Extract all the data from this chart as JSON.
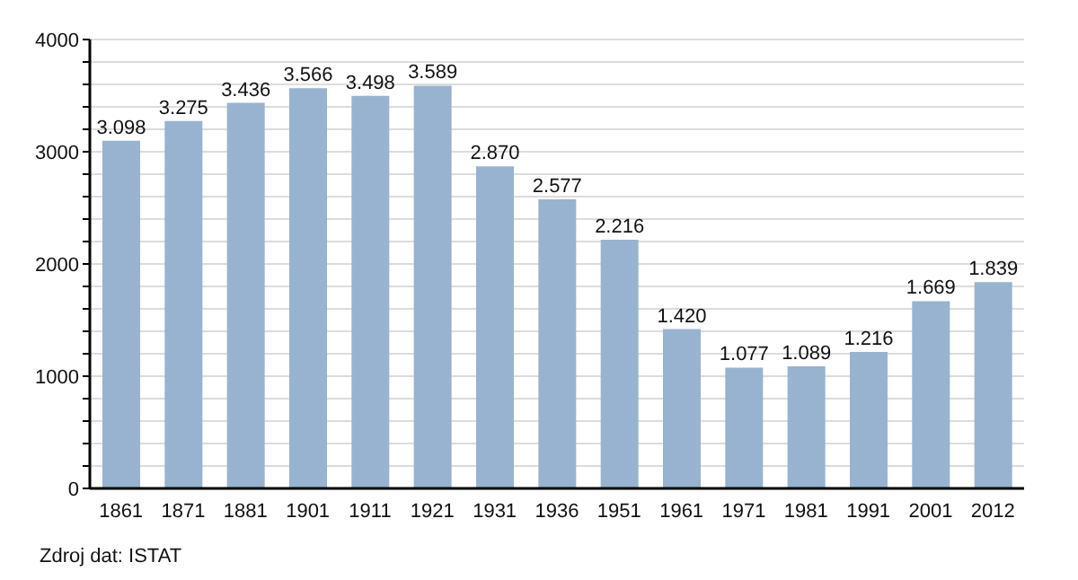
{
  "chart_data": {
    "type": "bar",
    "categories": [
      "1861",
      "1871",
      "1881",
      "1901",
      "1911",
      "1921",
      "1931",
      "1936",
      "1951",
      "1961",
      "1971",
      "1981",
      "1991",
      "2001",
      "2012"
    ],
    "values": [
      3098,
      3275,
      3436,
      3566,
      3498,
      3589,
      2870,
      2577,
      2216,
      1420,
      1077,
      1089,
      1216,
      1669,
      1839
    ],
    "value_labels": [
      "3.098",
      "3.275",
      "3.436",
      "3.566",
      "3.498",
      "3.589",
      "2.870",
      "2.577",
      "2.216",
      "1.420",
      "1.077",
      "1.089",
      "1.216",
      "1.669",
      "1.839"
    ],
    "color": "#98b3cf",
    "ylim": [
      0,
      4000
    ],
    "yticks": [
      0,
      {
        "value": 200,
        "label": null
      },
      {
        "value": 400,
        "label": null
      },
      {
        "value": 600,
        "label": null
      },
      {
        "value": 800,
        "label": null
      },
      1000,
      {
        "value": 1200,
        "label": null
      },
      {
        "value": 1400,
        "label": null
      },
      {
        "value": 1600,
        "label": null
      },
      {
        "value": 1800,
        "label": null
      },
      2000,
      {
        "value": 2200,
        "label": null
      },
      {
        "value": 2400,
        "label": null
      },
      {
        "value": 2600,
        "label": null
      },
      {
        "value": 2800,
        "label": null
      },
      3000,
      {
        "value": 3200,
        "label": null
      },
      {
        "value": 3400,
        "label": null
      },
      {
        "value": 3600,
        "label": null
      },
      {
        "value": 3800,
        "label": null
      },
      4000
    ],
    "grid": "y",
    "annotations": [
      "Zdroj dat: ISTAT"
    ]
  }
}
